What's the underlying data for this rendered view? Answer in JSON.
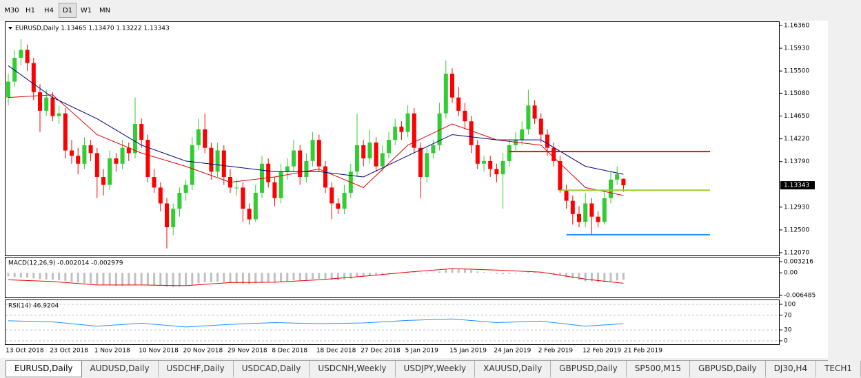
{
  "toolbar": {
    "timeframes": [
      "M30",
      "H1",
      "H4",
      "D1",
      "W1",
      "MN"
    ],
    "active": 3
  },
  "chart_data": {
    "type": "candlestick",
    "header": "EURUSD,Daily  1.13465 1.13470 1.13222 1.13343",
    "ylim": [
      1.1207,
      1.1636
    ],
    "yticks": [
      {
        "value": 1.1636,
        "label": "1.16360"
      },
      {
        "value": 1.1593,
        "label": "1.15930"
      },
      {
        "value": 1.155,
        "label": "1.15500"
      },
      {
        "value": 1.1508,
        "label": "1.15080"
      },
      {
        "value": 1.1465,
        "label": "1.14650"
      },
      {
        "value": 1.1422,
        "label": "1.14220"
      },
      {
        "value": 1.1379,
        "label": "1.13790"
      },
      {
        "value": 1.1293,
        "label": "1.12930"
      },
      {
        "value": 1.125,
        "label": "1.12500"
      },
      {
        "value": 1.1207,
        "label": "1.12070"
      }
    ],
    "current": 1.13343,
    "up_color": "#32cd32",
    "down_color": "#ff0000",
    "x_labels": [
      "13 Oct 2018",
      "23 Oct 2018",
      "1 Nov 2018",
      "10 Nov 2018",
      "20 Nov 2018",
      "29 Nov 2018",
      "8 Dec 2018",
      "18 Dec 2018",
      "27 Dec 2018",
      "5 Jan 2019",
      "15 Jan 2019",
      "24 Jan 2019",
      "2 Feb 2019",
      "12 Feb 2019",
      "21 Feb 2019"
    ],
    "candles": [
      [
        1.15,
        1.1545,
        1.1485,
        1.153
      ],
      [
        1.153,
        1.159,
        1.152,
        1.1575
      ],
      [
        1.1575,
        1.161,
        1.156,
        1.159
      ],
      [
        1.159,
        1.16,
        1.155,
        1.1565
      ],
      [
        1.1565,
        1.1575,
        1.1495,
        1.151
      ],
      [
        1.151,
        1.1525,
        1.1435,
        1.1475
      ],
      [
        1.1475,
        1.1515,
        1.1465,
        1.15
      ],
      [
        1.15,
        1.151,
        1.1455,
        1.1465
      ],
      [
        1.1465,
        1.1485,
        1.145,
        1.147
      ],
      [
        1.147,
        1.148,
        1.1385,
        1.14
      ],
      [
        1.14,
        1.142,
        1.1375,
        1.139
      ],
      [
        1.139,
        1.1405,
        1.1355,
        1.1375
      ],
      [
        1.1375,
        1.1425,
        1.1365,
        1.141
      ],
      [
        1.141,
        1.142,
        1.138,
        1.1395
      ],
      [
        1.1395,
        1.1405,
        1.131,
        1.135
      ],
      [
        1.135,
        1.1365,
        1.1315,
        1.1335
      ],
      [
        1.1335,
        1.14,
        1.1325,
        1.1385
      ],
      [
        1.1385,
        1.1395,
        1.136,
        1.1375
      ],
      [
        1.1375,
        1.142,
        1.1365,
        1.1405
      ],
      [
        1.1405,
        1.1415,
        1.138,
        1.1395
      ],
      [
        1.1395,
        1.15,
        1.1385,
        1.145
      ],
      [
        1.145,
        1.146,
        1.1405,
        1.142
      ],
      [
        1.142,
        1.143,
        1.134,
        1.135
      ],
      [
        1.135,
        1.1365,
        1.132,
        1.133
      ],
      [
        1.133,
        1.134,
        1.1285,
        1.13
      ],
      [
        1.13,
        1.131,
        1.1215,
        1.1255
      ],
      [
        1.1255,
        1.13,
        1.124,
        1.129
      ],
      [
        1.129,
        1.133,
        1.1275,
        1.132
      ],
      [
        1.132,
        1.1345,
        1.1305,
        1.1335
      ],
      [
        1.1335,
        1.1425,
        1.1325,
        1.141
      ],
      [
        1.141,
        1.146,
        1.14,
        1.144
      ],
      [
        1.144,
        1.147,
        1.1395,
        1.1405
      ],
      [
        1.1405,
        1.1415,
        1.1345,
        1.136
      ],
      [
        1.136,
        1.1415,
        1.135,
        1.14
      ],
      [
        1.14,
        1.141,
        1.1335,
        1.135
      ],
      [
        1.135,
        1.1365,
        1.132,
        1.133
      ],
      [
        1.133,
        1.1345,
        1.1315,
        1.133
      ],
      [
        1.133,
        1.134,
        1.1265,
        1.129
      ],
      [
        1.129,
        1.13,
        1.126,
        1.127
      ],
      [
        1.127,
        1.1335,
        1.1265,
        1.132
      ],
      [
        1.132,
        1.139,
        1.131,
        1.1375
      ],
      [
        1.1375,
        1.1385,
        1.133,
        1.134
      ],
      [
        1.134,
        1.135,
        1.1295,
        1.131
      ],
      [
        1.131,
        1.1375,
        1.13,
        1.136
      ],
      [
        1.136,
        1.1385,
        1.1345,
        1.137
      ],
      [
        1.137,
        1.142,
        1.136,
        1.14
      ],
      [
        1.14,
        1.141,
        1.1335,
        1.135
      ],
      [
        1.135,
        1.1395,
        1.134,
        1.138
      ],
      [
        1.138,
        1.1435,
        1.137,
        1.142
      ],
      [
        1.142,
        1.143,
        1.136,
        1.137
      ],
      [
        1.137,
        1.138,
        1.132,
        1.133
      ],
      [
        1.133,
        1.134,
        1.127,
        1.13
      ],
      [
        1.13,
        1.131,
        1.128,
        1.129
      ],
      [
        1.129,
        1.1335,
        1.128,
        1.132
      ],
      [
        1.132,
        1.1375,
        1.131,
        1.136
      ],
      [
        1.136,
        1.147,
        1.135,
        1.141
      ],
      [
        1.141,
        1.142,
        1.137,
        1.1385
      ],
      [
        1.1385,
        1.144,
        1.1375,
        1.1415
      ],
      [
        1.1415,
        1.1425,
        1.136,
        1.137
      ],
      [
        1.137,
        1.141,
        1.136,
        1.1395
      ],
      [
        1.1395,
        1.1435,
        1.1385,
        1.142
      ],
      [
        1.142,
        1.146,
        1.141,
        1.1445
      ],
      [
        1.1445,
        1.1455,
        1.142,
        1.1435
      ],
      [
        1.1435,
        1.1485,
        1.1425,
        1.147
      ],
      [
        1.147,
        1.148,
        1.1395,
        1.1405
      ],
      [
        1.1405,
        1.1415,
        1.131,
        1.135
      ],
      [
        1.135,
        1.1405,
        1.134,
        1.1395
      ],
      [
        1.1395,
        1.142,
        1.1385,
        1.141
      ],
      [
        1.141,
        1.149,
        1.14,
        1.147
      ],
      [
        1.147,
        1.157,
        1.146,
        1.1545
      ],
      [
        1.1545,
        1.1555,
        1.149,
        1.15
      ],
      [
        1.15,
        1.152,
        1.1465,
        1.1475
      ],
      [
        1.1475,
        1.149,
        1.144,
        1.1455
      ],
      [
        1.1455,
        1.1465,
        1.1395,
        1.141
      ],
      [
        1.141,
        1.142,
        1.1365,
        1.1375
      ],
      [
        1.1375,
        1.139,
        1.136,
        1.138
      ],
      [
        1.138,
        1.139,
        1.135,
        1.1365
      ],
      [
        1.1365,
        1.1375,
        1.134,
        1.1355
      ],
      [
        1.1355,
        1.1395,
        1.129,
        1.138
      ],
      [
        1.138,
        1.142,
        1.137,
        1.141
      ],
      [
        1.141,
        1.1435,
        1.14,
        1.142
      ],
      [
        1.142,
        1.1455,
        1.141,
        1.144
      ],
      [
        1.144,
        1.1515,
        1.143,
        1.1485
      ],
      [
        1.1485,
        1.1495,
        1.145,
        1.146
      ],
      [
        1.146,
        1.147,
        1.1415,
        1.143
      ],
      [
        1.143,
        1.144,
        1.139,
        1.1405
      ],
      [
        1.1405,
        1.1415,
        1.137,
        1.138
      ],
      [
        1.138,
        1.139,
        1.132,
        1.1325
      ],
      [
        1.1325,
        1.1335,
        1.129,
        1.1305
      ],
      [
        1.1305,
        1.1315,
        1.126,
        1.128
      ],
      [
        1.128,
        1.1295,
        1.1255,
        1.1265
      ],
      [
        1.1265,
        1.132,
        1.1255,
        1.13
      ],
      [
        1.13,
        1.131,
        1.124,
        1.1275
      ],
      [
        1.1275,
        1.1285,
        1.1255,
        1.1265
      ],
      [
        1.1265,
        1.1325,
        1.126,
        1.131
      ],
      [
        1.131,
        1.136,
        1.13,
        1.1345
      ],
      [
        1.1345,
        1.137,
        1.1335,
        1.1355
      ],
      [
        1.13465,
        1.1347,
        1.13222,
        1.13343
      ]
    ],
    "lines": [
      {
        "color": "#e00000",
        "x": [
          0,
          7,
          14,
          21,
          28,
          35,
          42,
          49,
          56,
          63,
          70,
          77,
          84,
          91,
          97
        ],
        "values": [
          1.15,
          1.1505,
          1.143,
          1.1395,
          1.137,
          1.134,
          1.135,
          1.1365,
          1.133,
          1.141,
          1.145,
          1.142,
          1.141,
          1.133,
          1.1315
        ]
      },
      {
        "color": "#000080",
        "x": [
          0,
          7,
          14,
          21,
          28,
          35,
          42,
          49,
          56,
          63,
          70,
          77,
          84,
          91,
          97
        ],
        "values": [
          1.156,
          1.15,
          1.146,
          1.141,
          1.138,
          1.137,
          1.136,
          1.136,
          1.135,
          1.139,
          1.143,
          1.142,
          1.142,
          1.137,
          1.1355
        ]
      }
    ],
    "levels": [
      {
        "value": 1.1398,
        "start": 79,
        "color": "#ff0000"
      },
      {
        "value": 1.1325,
        "start": 87,
        "color": "#9acd32"
      },
      {
        "value": 1.1241,
        "start": 88,
        "color": "#1e90ff"
      }
    ],
    "macd": {
      "label": "MACD(12,26,9) -0.002014 -0.002979",
      "ylim": [
        -0.006485,
        0.003216
      ],
      "yticks": [
        0.003216,
        {
          "value": 0,
          "label": "0.00"
        },
        -0.006485
      ],
      "bar_color": "#c0c0c0",
      "signal_color": "#e00000",
      "histogram": [
        -0.001,
        -0.0012,
        -0.0013,
        -0.0014,
        -0.0016,
        -0.0018,
        -0.0019,
        -0.002,
        -0.0021,
        -0.0023,
        -0.0026,
        -0.0028,
        -0.003,
        -0.0031,
        -0.0033,
        -0.0035,
        -0.0036,
        -0.0037,
        -0.0037,
        -0.0036,
        -0.0034,
        -0.0033,
        -0.0034,
        -0.0035,
        -0.0037,
        -0.004,
        -0.0041,
        -0.004,
        -0.0038,
        -0.0034,
        -0.003,
        -0.0027,
        -0.0027,
        -0.0026,
        -0.0027,
        -0.0028,
        -0.0029,
        -0.0031,
        -0.0032,
        -0.003,
        -0.0027,
        -0.0026,
        -0.0027,
        -0.0026,
        -0.0024,
        -0.0021,
        -0.0022,
        -0.0021,
        -0.0018,
        -0.0017,
        -0.0018,
        -0.002,
        -0.0021,
        -0.002,
        -0.0017,
        -0.0012,
        -0.001,
        -0.0008,
        -0.0008,
        -0.0006,
        -0.0004,
        -0.0002,
        0,
        0.0003,
        0.0002,
        -0.0002,
        -0.0002,
        0,
        0.0004,
        0.001,
        0.0012,
        0.0012,
        0.0011,
        0.0008,
        0.0004,
        0.0002,
        -0.0001,
        -0.0003,
        -0.0004,
        -0.0003,
        -0.0002,
        -0.0001,
        0.0002,
        0.0002,
        0.0001,
        -0.0001,
        -0.0004,
        -0.0008,
        -0.0012,
        -0.0016,
        -0.002,
        -0.0024,
        -0.0025,
        -0.0027,
        -0.0027,
        -0.0025,
        -0.0022,
        -0.002
      ],
      "signal_x": [
        0,
        7,
        14,
        21,
        28,
        35,
        42,
        49,
        56,
        63,
        70,
        77,
        84,
        91,
        97
      ],
      "signal": [
        -0.002,
        -0.0025,
        -0.0035,
        -0.0035,
        -0.0037,
        -0.0028,
        -0.0027,
        -0.002,
        -0.001,
        0.0002,
        0.0012,
        0.0008,
        0.0002,
        -0.0018,
        -0.003
      ]
    },
    "rsi": {
      "label": "RSI(14) 46.9204",
      "ylim": [
        0,
        100
      ],
      "yticks": [
        100,
        70,
        30,
        0
      ],
      "color": "#1e90ff",
      "x": [
        0,
        7,
        14,
        21,
        28,
        35,
        42,
        49,
        56,
        63,
        70,
        77,
        84,
        91,
        97
      ],
      "values": [
        55,
        52,
        40,
        48,
        38,
        45,
        50,
        47,
        49,
        56,
        60,
        50,
        54,
        40,
        47
      ]
    }
  },
  "tabs": {
    "items": [
      "EURUSD,Daily",
      "AUDUSD,Daily",
      "USDCHF,Daily",
      "USDCAD,Daily",
      "USDCNH,Weekly",
      "USDJPY,Weekly",
      "XAUUSD,Daily",
      "GBPUSD,Daily",
      "SP500,M15",
      "GBPUSD,Daily",
      "DJ30,H4",
      "TECH1"
    ],
    "active": 0
  }
}
